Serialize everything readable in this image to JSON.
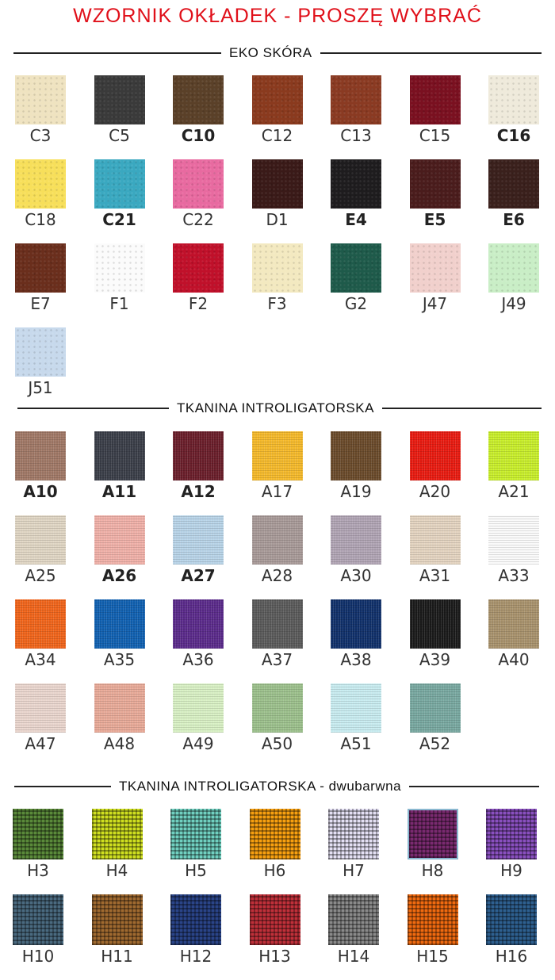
{
  "title": "WZORNIK OKŁADEK - PROSZĘ WYBRAĆ",
  "accent_color": "#e0101a",
  "sections": [
    {
      "heading": "EKO SKÓRA",
      "texture": "leather",
      "items": [
        {
          "code": "C3",
          "color": "#efe3c0",
          "bold": false
        },
        {
          "code": "C5",
          "color": "#3a3a3a",
          "bold": false
        },
        {
          "code": "C10",
          "color": "#5a4028",
          "bold": true
        },
        {
          "code": "C12",
          "color": "#8a3a1e",
          "bold": false
        },
        {
          "code": "C13",
          "color": "#8a3a22",
          "bold": false
        },
        {
          "code": "C15",
          "color": "#7a1020",
          "bold": false
        },
        {
          "code": "C16",
          "color": "#efeadb",
          "bold": true
        },
        {
          "code": "C18",
          "color": "#f7df5a",
          "bold": false
        },
        {
          "code": "C21",
          "color": "#3aa8c0",
          "bold": true
        },
        {
          "code": "C22",
          "color": "#e86aa0",
          "bold": false
        },
        {
          "code": "D1",
          "color": "#3a1a18",
          "bold": false
        },
        {
          "code": "E4",
          "color": "#1e1c1e",
          "bold": true
        },
        {
          "code": "E5",
          "color": "#4a1c1c",
          "bold": true
        },
        {
          "code": "E6",
          "color": "#3a201c",
          "bold": true
        },
        {
          "code": "E7",
          "color": "#6a2e1c",
          "bold": false
        },
        {
          "code": "F1",
          "color": "#fbfbfb",
          "bold": false
        },
        {
          "code": "F2",
          "color": "#c0102a",
          "bold": false
        },
        {
          "code": "F3",
          "color": "#f3e9c0",
          "bold": false
        },
        {
          "code": "G2",
          "color": "#1e5a4a",
          "bold": false
        },
        {
          "code": "J47",
          "color": "#f1d0cc",
          "bold": false
        },
        {
          "code": "J49",
          "color": "#c9eec6",
          "bold": false
        },
        {
          "code": "J51",
          "color": "#c7d9ec",
          "bold": false
        }
      ]
    },
    {
      "heading": "TKANINA INTROLIGATORSKA",
      "texture": "fabric",
      "items": [
        {
          "code": "A10",
          "color": "#a07866",
          "bold": true
        },
        {
          "code": "A11",
          "color": "#3a3e48",
          "bold": true
        },
        {
          "code": "A12",
          "color": "#6a1e2a",
          "bold": true
        },
        {
          "code": "A17",
          "color": "#f5b92a",
          "bold": false
        },
        {
          "code": "A19",
          "color": "#6a4a2a",
          "bold": false
        },
        {
          "code": "A20",
          "color": "#e81a10",
          "bold": false
        },
        {
          "code": "A21",
          "color": "#c8ee2a",
          "bold": false
        },
        {
          "code": "A25",
          "color": "#e0d6c4",
          "bold": false
        },
        {
          "code": "A26",
          "color": "#f0b0a8",
          "bold": true
        },
        {
          "code": "A27",
          "color": "#b8d4e8",
          "bold": true
        },
        {
          "code": "A28",
          "color": "#a89a98",
          "bold": false
        },
        {
          "code": "A30",
          "color": "#b0a4b4",
          "bold": false
        },
        {
          "code": "A31",
          "color": "#e4d4c0",
          "bold": false
        },
        {
          "code": "A33",
          "color": "#fafafa",
          "bold": false
        },
        {
          "code": "A34",
          "color": "#f0641a",
          "bold": false
        },
        {
          "code": "A35",
          "color": "#1060b0",
          "bold": false
        },
        {
          "code": "A36",
          "color": "#5a2a8a",
          "bold": false
        },
        {
          "code": "A37",
          "color": "#5a5a5a",
          "bold": false
        },
        {
          "code": "A38",
          "color": "#10306a",
          "bold": false
        },
        {
          "code": "A39",
          "color": "#1a1a1a",
          "bold": false
        },
        {
          "code": "A40",
          "color": "#a8926c",
          "bold": false
        },
        {
          "code": "A47",
          "color": "#ead6ce",
          "bold": false
        },
        {
          "code": "A48",
          "color": "#e8aa98",
          "bold": false
        },
        {
          "code": "A49",
          "color": "#d8f0c4",
          "bold": false
        },
        {
          "code": "A50",
          "color": "#9cc08c",
          "bold": false
        },
        {
          "code": "A51",
          "color": "#c8ecf0",
          "bold": false
        },
        {
          "code": "A52",
          "color": "#78a8a0",
          "bold": false
        }
      ]
    },
    {
      "heading": "TKANINA INTROLIGATORSKA - dwubarwna",
      "texture": "weave",
      "items": [
        {
          "code": "H3",
          "color": "#5a8a3a",
          "bold": false
        },
        {
          "code": "H4",
          "color": "#d0e020",
          "bold": false
        },
        {
          "code": "H5",
          "color": "#70d0c0",
          "bold": false
        },
        {
          "code": "H6",
          "color": "#f8a010",
          "bold": false
        },
        {
          "code": "H7",
          "color": "#e4e0f4",
          "bold": false
        },
        {
          "code": "H8",
          "color": "#7a2a70",
          "bold": false
        },
        {
          "code": "H9",
          "color": "#8a50c0",
          "bold": false
        },
        {
          "code": "H10",
          "color": "#4a6a80",
          "bold": false
        },
        {
          "code": "H11",
          "color": "#a06a30",
          "bold": false
        },
        {
          "code": "H12",
          "color": "#2a4488",
          "bold": false
        },
        {
          "code": "H13",
          "color": "#c0303a",
          "bold": false
        },
        {
          "code": "H14",
          "color": "#8a8a8a",
          "bold": false
        },
        {
          "code": "H15",
          "color": "#f06a10",
          "bold": false
        },
        {
          "code": "H16",
          "color": "#2e6090",
          "bold": false
        }
      ]
    }
  ]
}
